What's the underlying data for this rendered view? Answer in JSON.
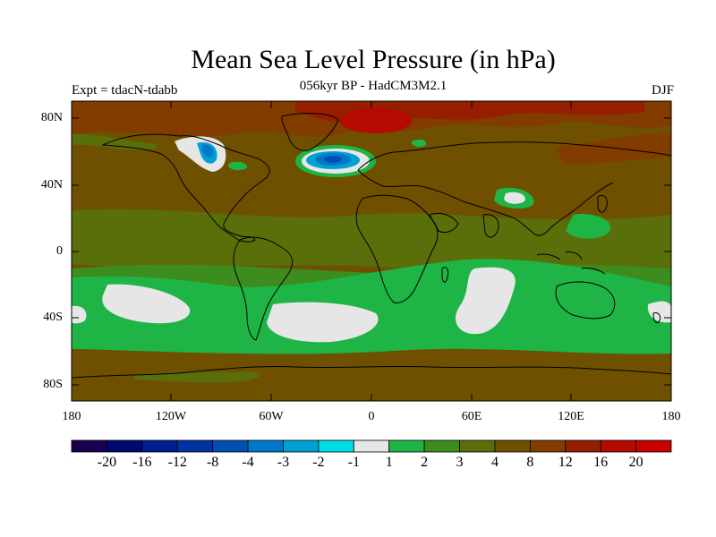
{
  "title": "Mean Sea Level Pressure (in hPa)",
  "subtitle": "056kyr BP - HadCM3M2.1",
  "expt_label": "Expt = tdacN-tdabb",
  "season": "DJF",
  "map": {
    "lat_labels": [
      "80N",
      "40N",
      "0",
      "40S",
      "80S"
    ],
    "lon_labels": [
      "180",
      "120W",
      "60W",
      "0",
      "60E",
      "120E",
      "180"
    ]
  },
  "colorbar": {
    "colors": [
      "#1a0050",
      "#000a6e",
      "#001f8c",
      "#0032a0",
      "#0050b4",
      "#0078c8",
      "#00a0d2",
      "#00dce6",
      "#e6e6e6",
      "#1eb446",
      "#3c8c1e",
      "#5a6e0a",
      "#6e5000",
      "#823c00",
      "#961e00",
      "#b40a00",
      "#c80000"
    ],
    "labels": [
      "-20",
      "-16",
      "-12",
      "-8",
      "-4",
      "-3",
      "-2",
      "-1",
      "1",
      "2",
      "3",
      "4",
      "8",
      "12",
      "16",
      "20"
    ]
  }
}
